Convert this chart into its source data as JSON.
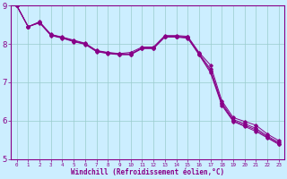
{
  "xlabel": "Windchill (Refroidissement éolien,°C)",
  "x": [
    0,
    1,
    2,
    3,
    4,
    5,
    6,
    7,
    8,
    9,
    10,
    11,
    12,
    13,
    14,
    15,
    16,
    17,
    18,
    19,
    20,
    21,
    22,
    23
  ],
  "line_data": [
    [
      9.0,
      8.45,
      8.58,
      8.25,
      8.18,
      8.1,
      8.02,
      7.83,
      7.78,
      7.75,
      7.78,
      7.92,
      7.92,
      8.22,
      8.22,
      8.2,
      7.78,
      7.45,
      6.52,
      6.08,
      5.98,
      5.88,
      5.65,
      5.48
    ],
    [
      9.0,
      8.45,
      8.55,
      8.22,
      8.15,
      8.06,
      7.99,
      7.8,
      7.75,
      7.72,
      7.72,
      7.88,
      7.88,
      8.18,
      8.18,
      8.15,
      7.72,
      7.25,
      6.4,
      5.98,
      5.85,
      5.72,
      5.55,
      5.38
    ],
    [
      9.0,
      8.45,
      8.56,
      8.23,
      8.16,
      8.07,
      8.0,
      7.81,
      7.76,
      7.73,
      7.73,
      7.89,
      7.89,
      8.19,
      8.19,
      8.17,
      7.73,
      7.3,
      6.43,
      6.0,
      5.88,
      5.76,
      5.57,
      5.4
    ],
    [
      9.0,
      8.45,
      8.57,
      8.24,
      8.17,
      8.08,
      8.01,
      7.82,
      7.77,
      7.74,
      7.74,
      7.9,
      7.9,
      8.2,
      8.2,
      8.18,
      7.75,
      7.35,
      6.47,
      6.03,
      5.92,
      5.8,
      5.6,
      5.43
    ]
  ],
  "bg_color": "#cceeff",
  "line_color": "#880088",
  "grid_color": "#99cccc",
  "ylim": [
    5,
    9
  ],
  "yticks": [
    5,
    6,
    7,
    8,
    9
  ],
  "xlim": [
    -0.5,
    23.5
  ],
  "figsize": [
    3.2,
    2.0
  ],
  "dpi": 100
}
